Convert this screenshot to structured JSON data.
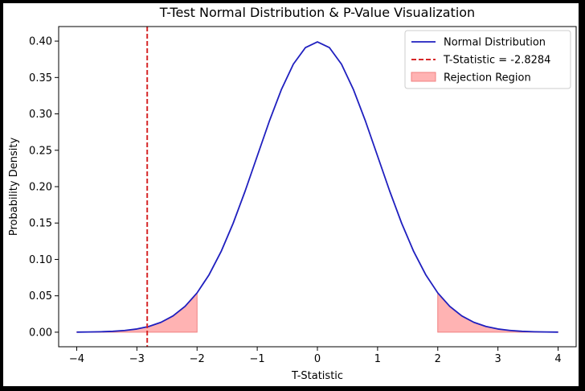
{
  "chart_data": {
    "type": "line",
    "title": "T-Test Normal Distribution & P-Value Visualization",
    "xlabel": "T-Statistic",
    "ylabel": "Probability Density",
    "xlim": [
      -4.3,
      4.3
    ],
    "ylim": [
      -0.02,
      0.42
    ],
    "xticks": [
      -4,
      -3,
      -2,
      -1,
      0,
      1,
      2,
      3,
      4
    ],
    "xtick_labels": [
      "−4",
      "−3",
      "−2",
      "−1",
      "0",
      "1",
      "2",
      "3",
      "4"
    ],
    "yticks": [
      0.0,
      0.05,
      0.1,
      0.15,
      0.2,
      0.25,
      0.3,
      0.35,
      0.4
    ],
    "ytick_labels": [
      "0.00",
      "0.05",
      "0.10",
      "0.15",
      "0.20",
      "0.25",
      "0.30",
      "0.35",
      "0.40"
    ],
    "grid": false,
    "legend_position": "top-right",
    "series": [
      {
        "name": "Normal Distribution",
        "kind": "line",
        "color": "#1f1fbf",
        "x": [
          -4.0,
          -3.8,
          -3.6,
          -3.4,
          -3.2,
          -3.0,
          -2.8,
          -2.6,
          -2.4,
          -2.2,
          -2.0,
          -1.8,
          -1.6,
          -1.4,
          -1.2,
          -1.0,
          -0.8,
          -0.6,
          -0.4,
          -0.2,
          0.0,
          0.2,
          0.4,
          0.6,
          0.8,
          1.0,
          1.2,
          1.4,
          1.6,
          1.8,
          2.0,
          2.2,
          2.4,
          2.6,
          2.8,
          3.0,
          3.2,
          3.4,
          3.6,
          3.8,
          4.0
        ],
        "y": [
          0.0001,
          0.0003,
          0.0006,
          0.0012,
          0.0024,
          0.0044,
          0.0079,
          0.0136,
          0.0224,
          0.0355,
          0.054,
          0.079,
          0.1109,
          0.1497,
          0.1942,
          0.242,
          0.2897,
          0.3332,
          0.3683,
          0.391,
          0.3989,
          0.391,
          0.3683,
          0.3332,
          0.2897,
          0.242,
          0.1942,
          0.1497,
          0.1109,
          0.079,
          0.054,
          0.0355,
          0.0224,
          0.0136,
          0.0079,
          0.0044,
          0.0024,
          0.0012,
          0.0006,
          0.0003,
          0.0001
        ]
      },
      {
        "name": "T-Statistic = -2.8284",
        "kind": "vline",
        "x": -2.8284,
        "color": "#d62728",
        "style": "dashed"
      },
      {
        "name": "Rejection Region",
        "kind": "fill",
        "color": "#ffb3b3",
        "ranges": [
          [
            -4.0,
            -2.0
          ],
          [
            2.0,
            4.0
          ]
        ]
      }
    ]
  }
}
